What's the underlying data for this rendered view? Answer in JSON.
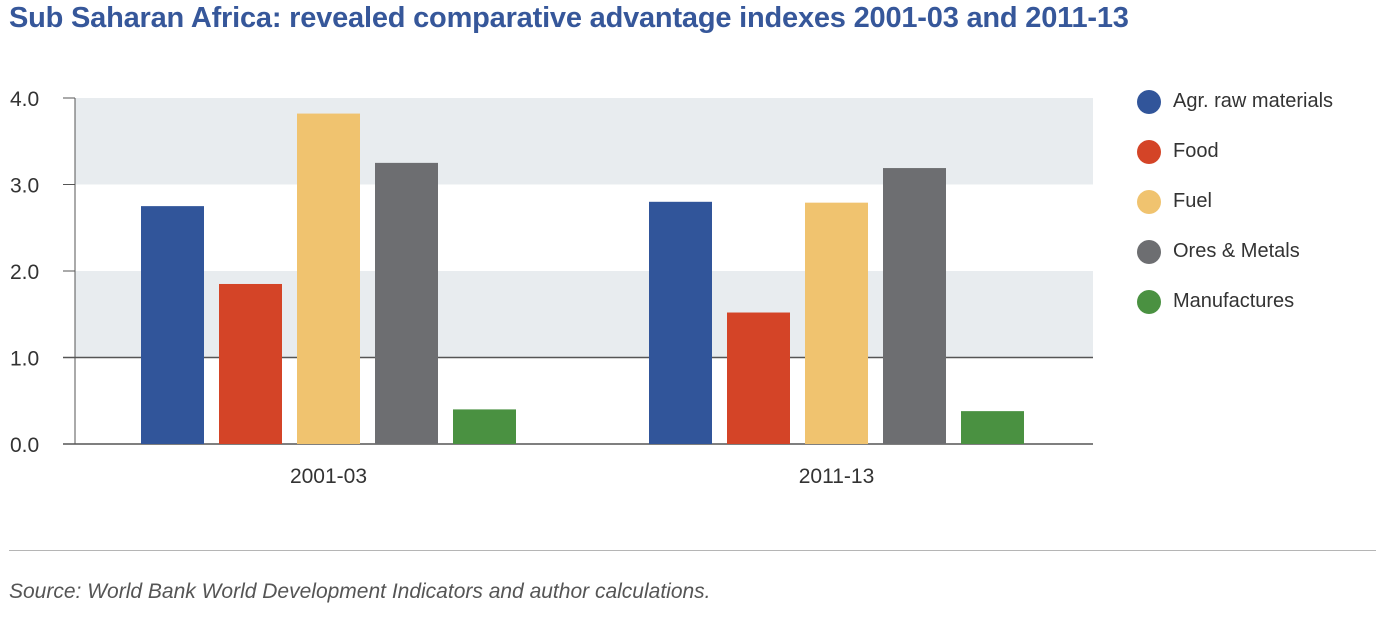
{
  "title": "Sub Saharan Africa: revealed comparative advantage indexes 2001-03 and 2011-13",
  "source": "Source: World Bank World Development Indicators and author calculations.",
  "colors": {
    "title": "#36579a",
    "band": "#e8ecef",
    "reference_line": "#555555"
  },
  "chart_data": {
    "type": "bar",
    "title": "Sub Saharan Africa: revealed comparative advantage indexes 2001-03 and 2011-13",
    "xlabel": "",
    "ylabel": "",
    "categories": [
      "2001-03",
      "2011-13"
    ],
    "ylim": [
      0,
      4
    ],
    "yticks": [
      "0.0",
      "1.0",
      "2.0",
      "3.0",
      "4.0"
    ],
    "reference_line": 1.0,
    "grid": "alternating horizontal bands",
    "legend_position": "right",
    "series": [
      {
        "name": "Agr. raw materials",
        "color": "#31559a",
        "values": [
          2.75,
          2.8
        ]
      },
      {
        "name": "Food",
        "color": "#d44427",
        "values": [
          1.85,
          1.52
        ]
      },
      {
        "name": "Fuel",
        "color": "#f0c36f",
        "values": [
          3.82,
          2.79
        ]
      },
      {
        "name": "Ores & Metals",
        "color": "#6d6e71",
        "values": [
          3.25,
          3.19
        ]
      },
      {
        "name": "Manufactures",
        "color": "#4a9141",
        "values": [
          0.4,
          0.38
        ]
      }
    ]
  }
}
